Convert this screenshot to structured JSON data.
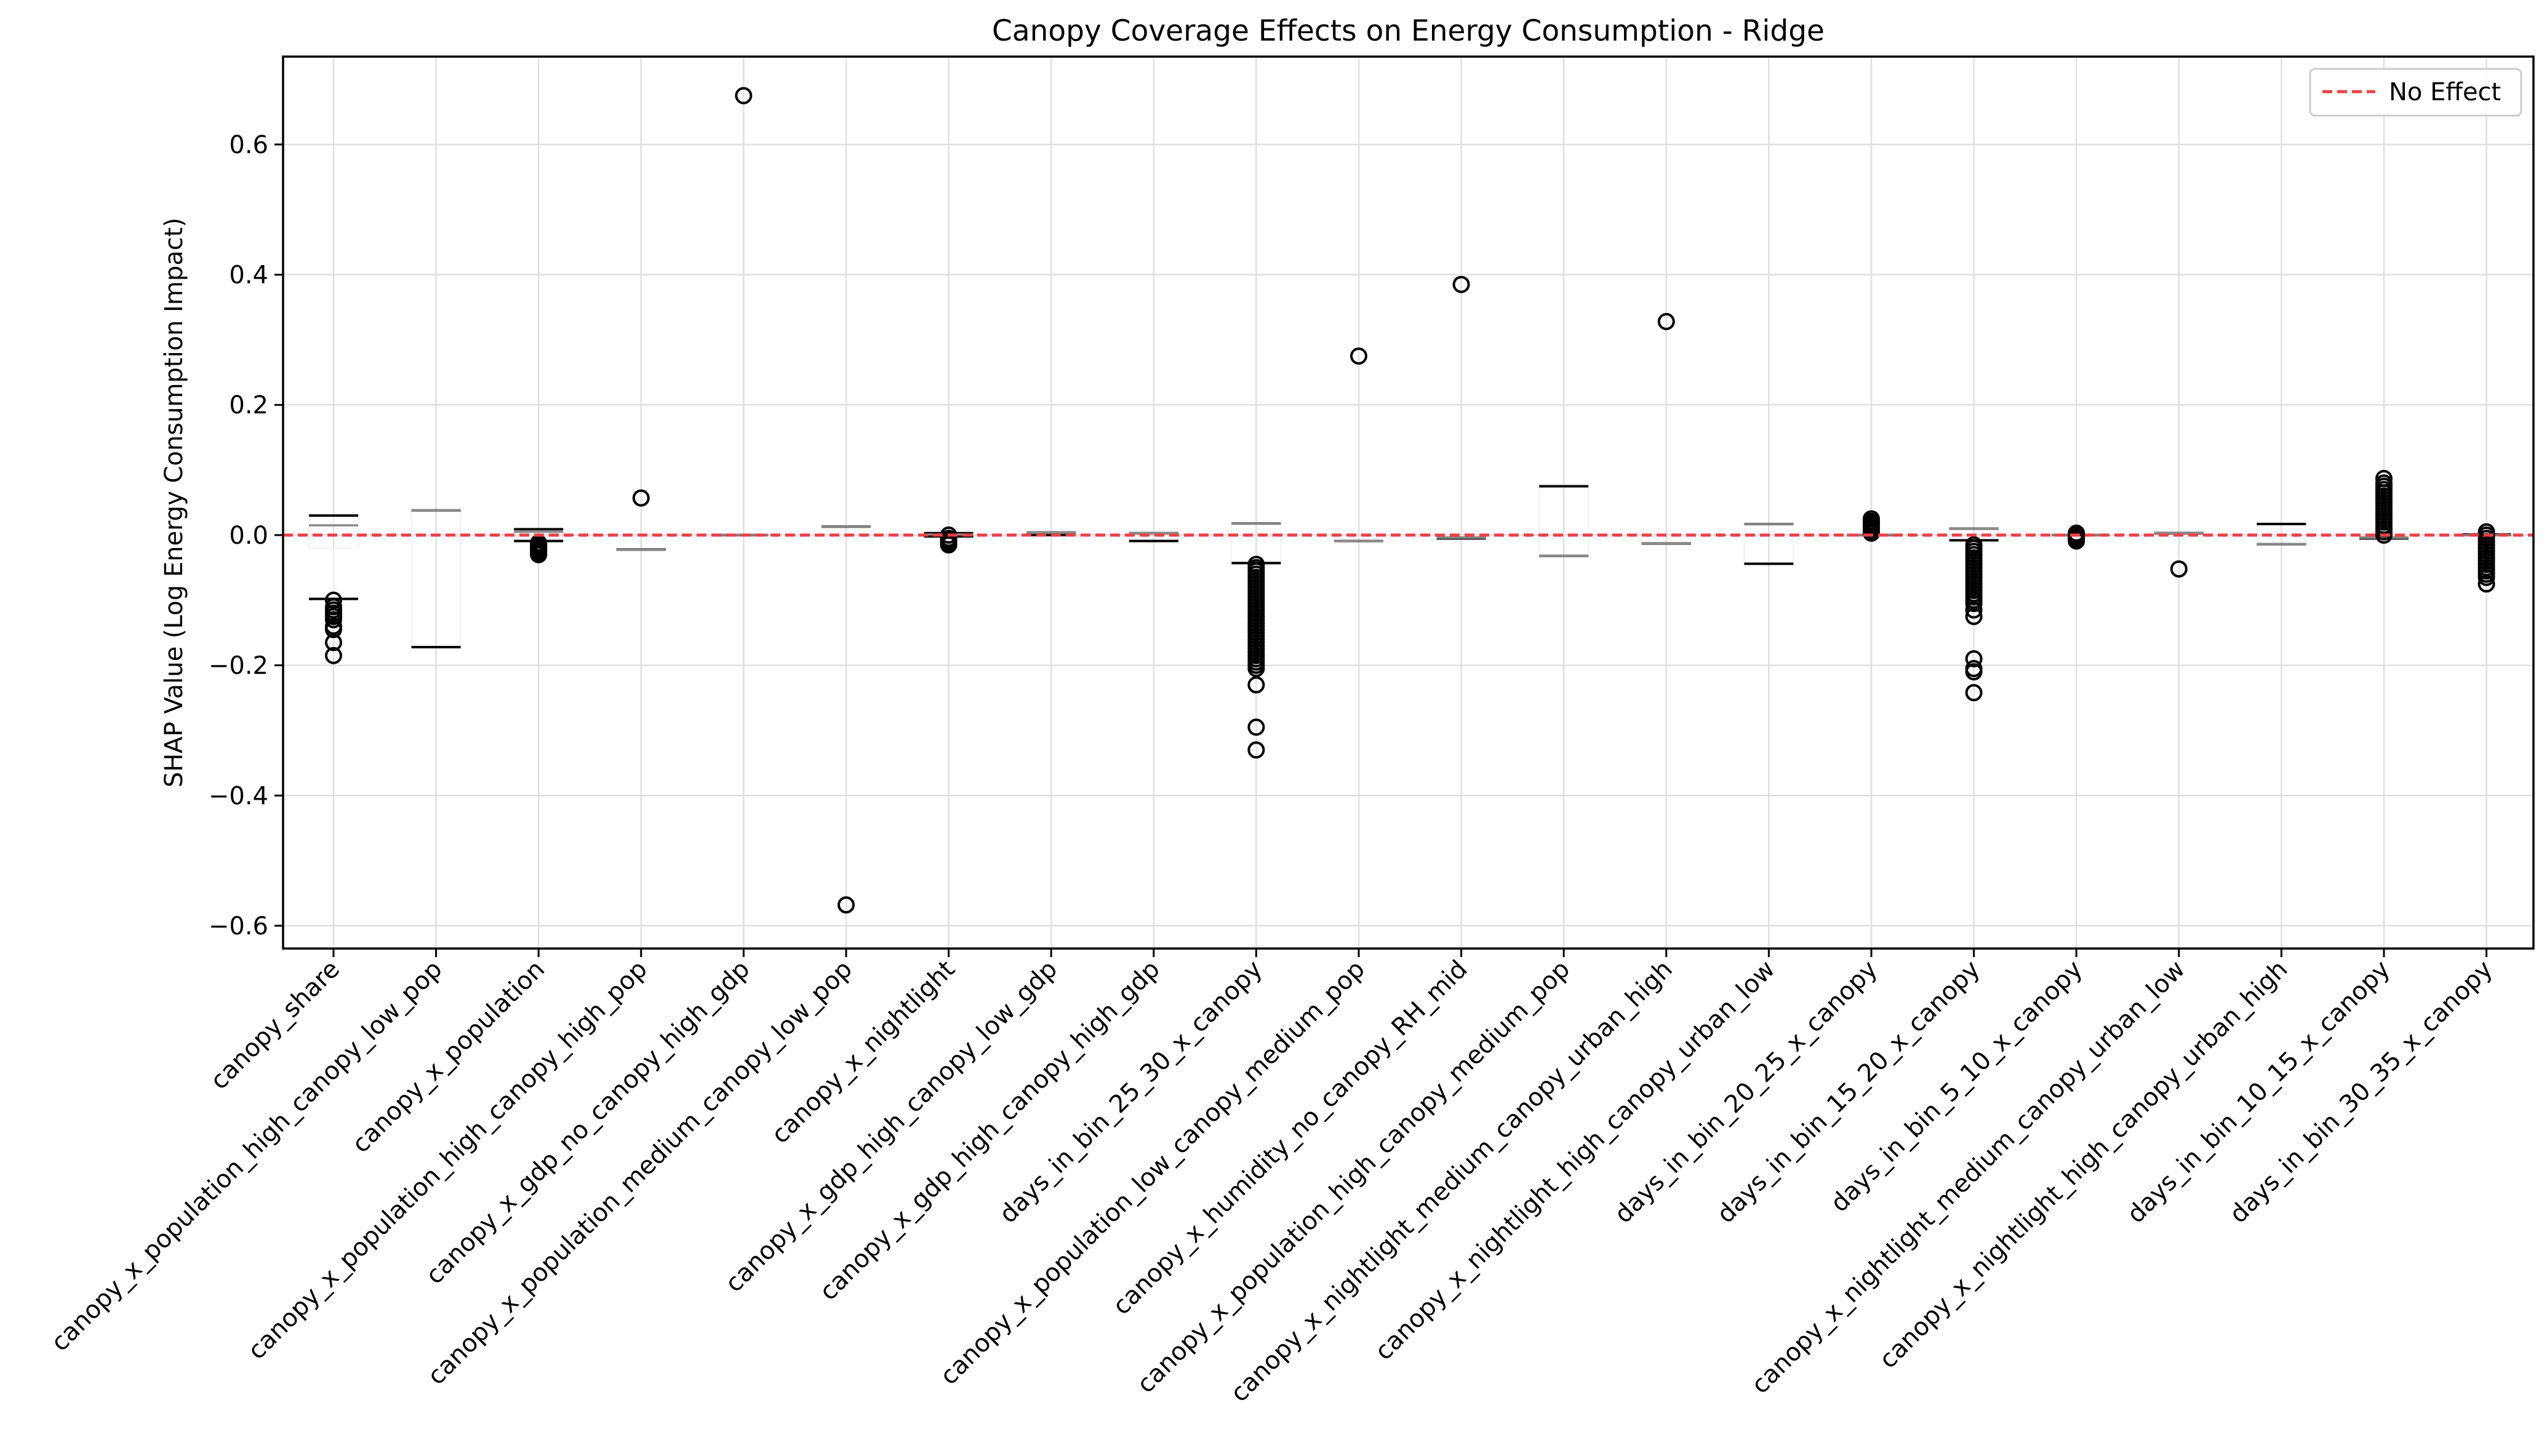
{
  "chart_data": {
    "type": "box",
    "title": "Canopy Coverage Effects on Energy Consumption - Ridge",
    "xlabel": "",
    "ylabel": "SHAP Value (Log Energy Consumption Impact)",
    "ylim": [
      -0.635,
      0.735
    ],
    "yticks": [
      -0.6,
      -0.4,
      -0.2,
      0.0,
      0.2,
      0.4,
      0.6
    ],
    "ytick_labels": [
      "−0.6",
      "−0.4",
      "−0.2",
      "0.0",
      "0.2",
      "0.4",
      "0.6"
    ],
    "grid": true,
    "legend": {
      "placement": "top-right",
      "entries": [
        {
          "label": "No Effect",
          "style": "dashed",
          "color": "#f04040"
        }
      ]
    },
    "reference_line": {
      "y": 0.0,
      "label": "No Effect",
      "color": "#f04040",
      "style": "dashed"
    },
    "categories": [
      "canopy_share",
      "canopy_x_population_high_canopy_low_pop",
      "canopy_x_population",
      "canopy_x_population_high_canopy_high_pop",
      "canopy_x_gdp_no_canopy_high_gdp",
      "canopy_x_population_medium_canopy_low_pop",
      "canopy_x_nightlight",
      "canopy_x_gdp_high_canopy_low_gdp",
      "canopy_x_gdp_high_canopy_high_gdp",
      "days_in_bin_25_30_x_canopy",
      "canopy_x_population_low_canopy_medium_pop",
      "canopy_x_humidity_no_canopy_RH_mid",
      "canopy_x_population_high_canopy_medium_pop",
      "canopy_x_nightlight_medium_canopy_urban_high",
      "canopy_x_nightlight_high_canopy_urban_low",
      "days_in_bin_20_25_x_canopy",
      "days_in_bin_15_20_x_canopy",
      "days_in_bin_5_10_x_canopy",
      "canopy_x_nightlight_medium_canopy_urban_low",
      "canopy_x_nightlight_high_canopy_urban_high",
      "days_in_bin_10_15_x_canopy",
      "days_in_bin_30_35_x_canopy"
    ],
    "boxes": [
      {
        "q1": -0.02,
        "median": 0.015,
        "q3": 0.015,
        "whislo": -0.098,
        "whishi": 0.03,
        "fliers": [
          -0.1,
          -0.11,
          -0.115,
          -0.12,
          -0.125,
          -0.13,
          -0.14,
          -0.145,
          -0.165,
          -0.185
        ]
      },
      {
        "q1": -0.172,
        "median": 0.038,
        "q3": 0.038,
        "whislo": -0.172,
        "whishi": 0.038,
        "fliers": []
      },
      {
        "q1": -0.002,
        "median": 0.005,
        "q3": 0.005,
        "whislo": -0.009,
        "whishi": 0.009,
        "fliers": [
          -0.012,
          -0.015,
          -0.018,
          -0.02,
          -0.022,
          -0.025,
          -0.028,
          -0.03
        ]
      },
      {
        "q1": -0.022,
        "median": -0.022,
        "q3": -0.022,
        "whislo": -0.022,
        "whishi": -0.022,
        "fliers": [
          0.057
        ]
      },
      {
        "q1": 0.0,
        "median": 0.0,
        "q3": 0.0,
        "whislo": 0.0,
        "whishi": 0.0,
        "fliers": [
          0.675
        ]
      },
      {
        "q1": 0.013,
        "median": 0.013,
        "q3": 0.013,
        "whislo": 0.013,
        "whishi": 0.013,
        "fliers": [
          -0.568
        ]
      },
      {
        "q1": 0.0,
        "median": 0.001,
        "q3": 0.001,
        "whislo": -0.002,
        "whishi": 0.003,
        "fliers": [
          0.0,
          -0.005,
          -0.008,
          -0.01,
          -0.013,
          -0.015
        ]
      },
      {
        "q1": 0.0,
        "median": 0.004,
        "q3": 0.004,
        "whislo": 0.0,
        "whishi": 0.004,
        "fliers": []
      },
      {
        "q1": -0.009,
        "median": 0.003,
        "q3": 0.003,
        "whislo": -0.009,
        "whishi": 0.003,
        "fliers": []
      },
      {
        "q1": -0.043,
        "median": 0.018,
        "q3": 0.018,
        "whislo": -0.043,
        "whishi": 0.018,
        "fliers": [
          -0.045,
          -0.05,
          -0.055,
          -0.06,
          -0.065,
          -0.07,
          -0.075,
          -0.08,
          -0.085,
          -0.09,
          -0.095,
          -0.1,
          -0.105,
          -0.11,
          -0.115,
          -0.12,
          -0.125,
          -0.13,
          -0.135,
          -0.14,
          -0.145,
          -0.15,
          -0.155,
          -0.16,
          -0.165,
          -0.17,
          -0.175,
          -0.18,
          -0.185,
          -0.19,
          -0.195,
          -0.2,
          -0.205,
          -0.23,
          -0.295,
          -0.33
        ]
      },
      {
        "q1": -0.009,
        "median": -0.009,
        "q3": -0.009,
        "whislo": -0.009,
        "whishi": -0.009,
        "fliers": [
          0.275
        ]
      },
      {
        "q1": -0.005,
        "median": -0.004,
        "q3": -0.004,
        "whislo": -0.005,
        "whishi": -0.004,
        "fliers": [
          0.385
        ]
      },
      {
        "q1": -0.032,
        "median": -0.032,
        "q3": 0.075,
        "whislo": -0.032,
        "whishi": 0.075,
        "fliers": []
      },
      {
        "q1": -0.013,
        "median": -0.013,
        "q3": -0.013,
        "whislo": -0.013,
        "whishi": -0.013,
        "fliers": [
          0.328
        ]
      },
      {
        "q1": -0.044,
        "median": 0.017,
        "q3": 0.017,
        "whislo": -0.044,
        "whishi": 0.017,
        "fliers": []
      },
      {
        "q1": 0.0,
        "median": 0.0,
        "q3": 0.0,
        "whislo": 0.0,
        "whishi": 0.0,
        "fliers": [
          0.003,
          0.006,
          0.009,
          0.012,
          0.015,
          0.018,
          0.021,
          0.025
        ]
      },
      {
        "q1": -0.008,
        "median": 0.01,
        "q3": 0.01,
        "whislo": -0.008,
        "whishi": 0.01,
        "fliers": [
          -0.015,
          -0.02,
          -0.025,
          -0.03,
          -0.035,
          -0.04,
          -0.045,
          -0.05,
          -0.055,
          -0.06,
          -0.065,
          -0.07,
          -0.075,
          -0.08,
          -0.085,
          -0.09,
          -0.095,
          -0.1,
          -0.105,
          -0.115,
          -0.125,
          -0.19,
          -0.205,
          -0.21,
          -0.242
        ]
      },
      {
        "q1": 0.0,
        "median": 0.0,
        "q3": 0.0,
        "whislo": 0.0,
        "whishi": 0.0,
        "fliers": [
          0.003,
          0.0,
          -0.003,
          -0.006,
          -0.009
        ]
      },
      {
        "q1": 0.003,
        "median": 0.003,
        "q3": 0.003,
        "whislo": 0.003,
        "whishi": 0.003,
        "fliers": [
          -0.052
        ]
      },
      {
        "q1": -0.014,
        "median": -0.014,
        "q3": 0.017,
        "whislo": -0.014,
        "whishi": 0.017,
        "fliers": []
      },
      {
        "q1": -0.005,
        "median": -0.004,
        "q3": -0.004,
        "whislo": -0.005,
        "whishi": -0.004,
        "fliers": [
          0.0,
          0.005,
          0.01,
          0.015,
          0.02,
          0.025,
          0.03,
          0.035,
          0.04,
          0.045,
          0.05,
          0.055,
          0.06,
          0.065,
          0.07,
          0.075,
          0.08,
          0.087
        ]
      },
      {
        "q1": 0.0,
        "median": 0.0,
        "q3": 0.001,
        "whislo": 0.0,
        "whishi": 0.001,
        "fliers": [
          0.005,
          0.0,
          -0.005,
          -0.01,
          -0.015,
          -0.02,
          -0.025,
          -0.03,
          -0.035,
          -0.04,
          -0.045,
          -0.05,
          -0.055,
          -0.06,
          -0.065,
          -0.075
        ]
      }
    ]
  }
}
